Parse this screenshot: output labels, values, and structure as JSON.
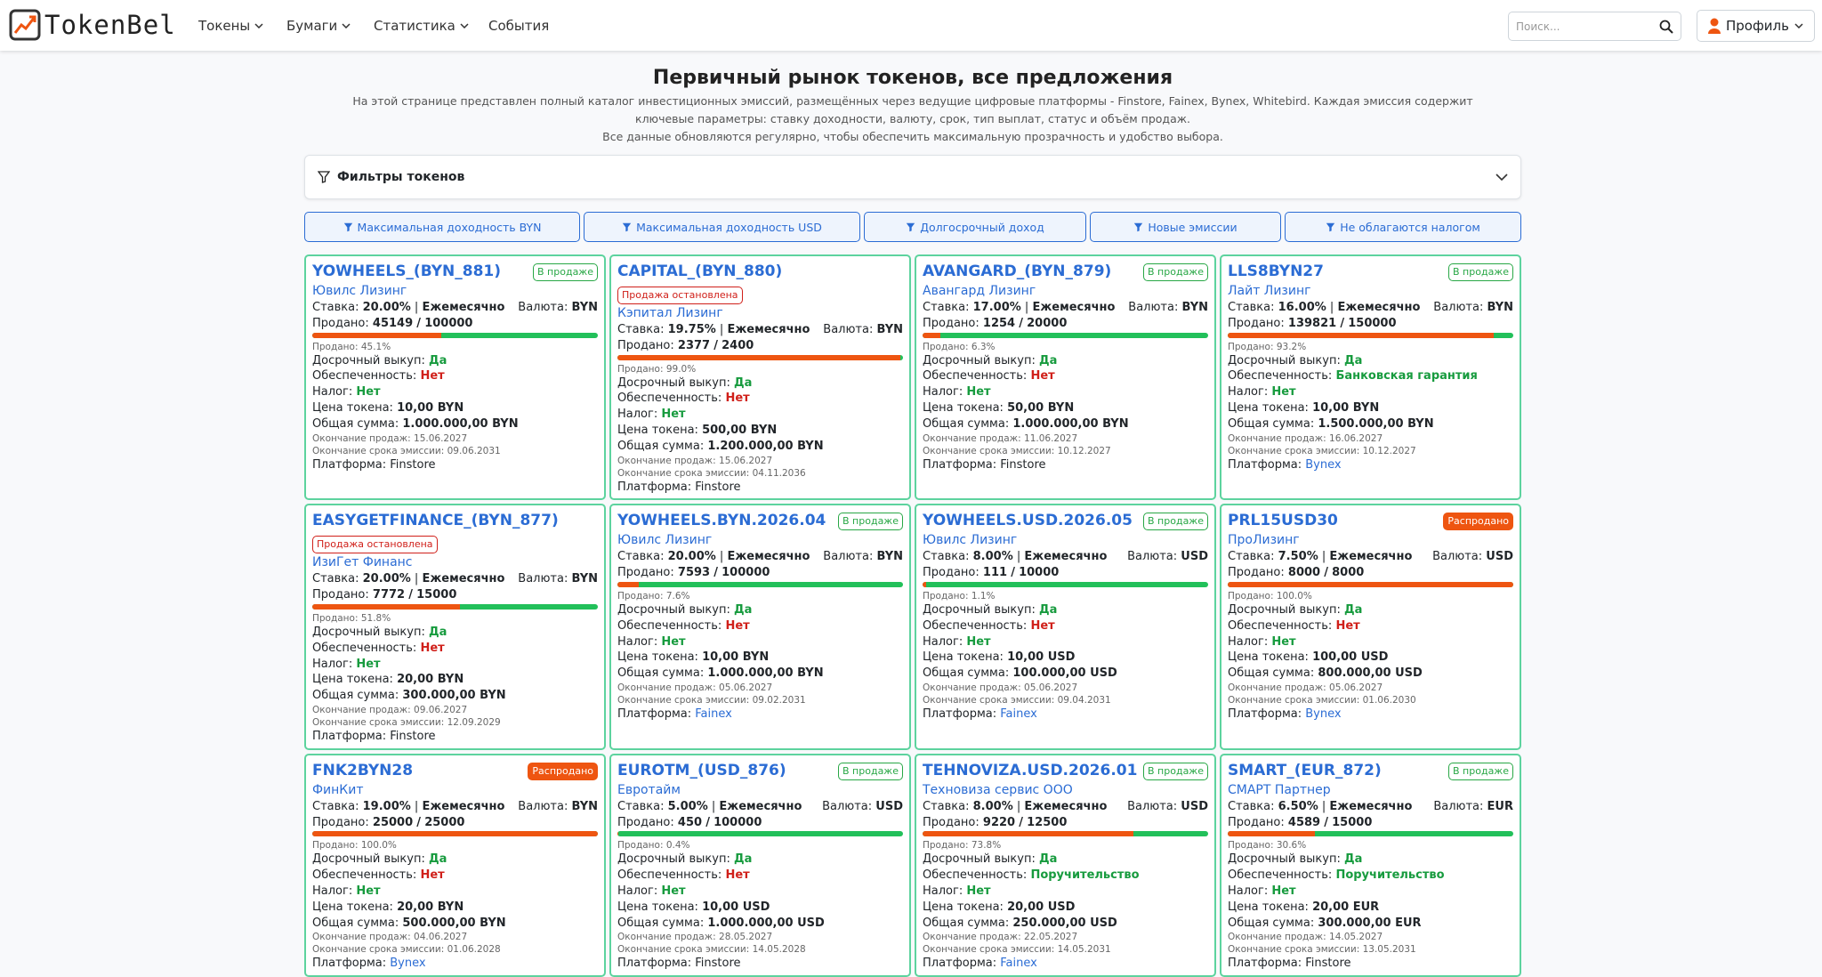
{
  "header": {
    "logo": "TokenBel",
    "nav": [
      "Токены",
      "Бумаги",
      "Статистика",
      "События"
    ],
    "search": "Поиск...",
    "profile": "Профиль"
  },
  "title": "Первичный рынок токенов, все предложения",
  "description": [
    "На этой странице представлен полный каталог инвестиционных эмиссий, размещённых через ведущие цифровые платформы - Finstore, Fainex, Bynex, Whitebird. Каждая эмиссия содержит ключевые параметры: ставку доходности, валюту, срок, тип выплат, статус и объём продаж.",
    "Все данные обновляются регулярно, чтобы обеспечить максимальную прозрачность и удобство выбора."
  ],
  "filters_title": "Фильтры токенов",
  "quick_filters": [
    "Максимальная доходность BYN",
    "Максимальная доходность USD",
    "Долгосрочный доход",
    "Новые эмиссии",
    "Не облагаются налогом"
  ],
  "labels": {
    "rate": "Ставка:",
    "sep": "|",
    "freq": "Ежемесячно",
    "currency": "Валюта:",
    "sold": "Продано:",
    "of": "/",
    "buyback": "Досрочный выкуп:",
    "security": "Обеспеченность:",
    "tax": "Налог:",
    "price": "Цена токена:",
    "total": "Общая сумма:",
    "sale_end": "Окончание продаж:",
    "emission_end": "Окончание срока эмиссии:",
    "platform": "Платформа:"
  },
  "cards": [
    {
      "name": "YOWHEELS_(BYN_881)",
      "status": "В продаже",
      "status_color": "#28a745",
      "company": "Ювилс Лизинг",
      "rate": "20.00%",
      "currency": "BYN",
      "sold": 45149,
      "total": 100000,
      "sold_pct": "45.1%",
      "buyback": "Да",
      "security": "Нет",
      "security_color": "#d0201a",
      "tax": "Нет",
      "price": "10,00 BYN",
      "sum": "1.000.000,00 BYN",
      "sale_end": "15.06.2027",
      "emission_end": "09.06.2031",
      "platform": "Finstore",
      "platform_color": "#212529"
    },
    {
      "name": "CAPITAL_(BYN_880)",
      "status": "Продажа остановлена",
      "status_color": "#d0201a",
      "company": "Кэпитал Лизинг",
      "rate": "19.75%",
      "currency": "BYN",
      "sold": 2377,
      "total": 2400,
      "sold_pct": "99.0%",
      "buyback": "Да",
      "security": "Нет",
      "security_color": "#d0201a",
      "tax": "Нет",
      "price": "500,00 BYN",
      "sum": "1.200.000,00 BYN",
      "sale_end": "15.06.2027",
      "emission_end": "04.11.2036",
      "platform": "Finstore",
      "platform_color": "#212529"
    },
    {
      "name": "AVANGARD_(BYN_879)",
      "status": "В продаже",
      "status_color": "#28a745",
      "company": "Авангард Лизинг",
      "rate": "17.00%",
      "currency": "BYN",
      "sold": 1254,
      "total": 20000,
      "sold_pct": "6.3%",
      "buyback": "Да",
      "security": "Нет",
      "security_color": "#d0201a",
      "tax": "Нет",
      "price": "50,00 BYN",
      "sum": "1.000.000,00 BYN",
      "sale_end": "11.06.2027",
      "emission_end": "10.12.2027",
      "platform": "Finstore",
      "platform_color": "#212529"
    },
    {
      "name": "LLS8BYN27",
      "status": "В продаже",
      "status_color": "#28a745",
      "company": "Лайт Лизинг",
      "rate": "16.00%",
      "currency": "BYN",
      "sold": 139821,
      "total": 150000,
      "sold_pct": "93.2%",
      "buyback": "Да",
      "security": "Банковская гарантия",
      "security_color": "#179b3e",
      "tax": "Нет",
      "price": "10,00 BYN",
      "sum": "1.500.000,00 BYN",
      "sale_end": "16.06.2027",
      "emission_end": "10.12.2027",
      "platform": "Bynex",
      "platform_color": "#2b6cd4"
    },
    {
      "name": "EASYGETFINANCE_(BYN_877)",
      "status": "Продажа остановлена",
      "status_color": "#d0201a",
      "company": "ИзиГет Финанс",
      "rate": "20.00%",
      "currency": "BYN",
      "sold": 7772,
      "total": 15000,
      "sold_pct": "51.8%",
      "buyback": "Да",
      "security": "Нет",
      "security_color": "#d0201a",
      "tax": "Нет",
      "price": "20,00 BYN",
      "sum": "300.000,00 BYN",
      "sale_end": "09.06.2027",
      "emission_end": "12.09.2029",
      "platform": "Finstore",
      "platform_color": "#212529"
    },
    {
      "name": "YOWHEELS.BYN.2026.04",
      "status": "В продаже",
      "status_color": "#28a745",
      "company": "Ювилс Лизинг",
      "rate": "20.00%",
      "currency": "BYN",
      "sold": 7593,
      "total": 100000,
      "sold_pct": "7.6%",
      "buyback": "Да",
      "security": "Нет",
      "security_color": "#d0201a",
      "tax": "Нет",
      "price": "10,00 BYN",
      "sum": "1.000.000,00 BYN",
      "sale_end": "05.06.2027",
      "emission_end": "09.02.2031",
      "platform": "Fainex",
      "platform_color": "#2b6cd4"
    },
    {
      "name": "YOWHEELS.USD.2026.05",
      "status": "В продаже",
      "status_color": "#28a745",
      "company": "Ювилс Лизинг",
      "rate": "8.00%",
      "currency": "USD",
      "sold": 111,
      "total": 10000,
      "sold_pct": "1.1%",
      "buyback": "Да",
      "security": "Нет",
      "security_color": "#d0201a",
      "tax": "Нет",
      "price": "10,00 USD",
      "sum": "100.000,00 USD",
      "sale_end": "05.06.2027",
      "emission_end": "09.04.2031",
      "platform": "Fainex",
      "platform_color": "#2b6cd4"
    },
    {
      "name": "PRL15USD30",
      "status": "Распродано",
      "status_color": "#ee5511",
      "company": "ПроЛизинг",
      "rate": "7.50%",
      "currency": "USD",
      "sold": 8000,
      "total": 8000,
      "sold_pct": "100.0%",
      "buyback": "Да",
      "security": "Нет",
      "security_color": "#d0201a",
      "tax": "Нет",
      "price": "100,00 USD",
      "sum": "800.000,00 USD",
      "sale_end": "05.06.2027",
      "emission_end": "01.06.2030",
      "platform": "Bynex",
      "platform_color": "#2b6cd4"
    },
    {
      "name": "FNK2BYN28",
      "status": "Распродано",
      "status_color": "#ee5511",
      "company": "ФинКит",
      "rate": "19.00%",
      "currency": "BYN",
      "sold": 25000,
      "total": 25000,
      "sold_pct": "100.0%",
      "buyback": "Да",
      "security": "Нет",
      "security_color": "#d0201a",
      "tax": "Нет",
      "price": "20,00 BYN",
      "sum": "500.000,00 BYN",
      "sale_end": "04.06.2027",
      "emission_end": "01.06.2028",
      "platform": "Bynex",
      "platform_color": "#2b6cd4"
    },
    {
      "name": "EUROTM_(USD_876)",
      "status": "В продаже",
      "status_color": "#28a745",
      "company": "Евротайм",
      "rate": "5.00%",
      "currency": "USD",
      "sold": 450,
      "total": 100000,
      "sold_pct": "0.4%",
      "buyback": "Да",
      "security": "Нет",
      "security_color": "#d0201a",
      "tax": "Нет",
      "price": "10,00 USD",
      "sum": "1.000.000,00 USD",
      "sale_end": "28.05.2027",
      "emission_end": "14.05.2028",
      "platform": "Finstore",
      "platform_color": "#212529"
    },
    {
      "name": "TEHNOVIZA.USD.2026.01",
      "status": "В продаже",
      "status_color": "#28a745",
      "company": "Техновиза сервис ООО",
      "rate": "8.00%",
      "currency": "USD",
      "sold": 9220,
      "total": 12500,
      "sold_pct": "73.8%",
      "buyback": "Да",
      "security": "Поручительство",
      "security_color": "#179b3e",
      "tax": "Нет",
      "price": "20,00 USD",
      "sum": "250.000,00 USD",
      "sale_end": "22.05.2027",
      "emission_end": "14.05.2031",
      "platform": "Fainex",
      "platform_color": "#2b6cd4"
    },
    {
      "name": "SMART_(EUR_872)",
      "status": "В продаже",
      "status_color": "#28a745",
      "company": "СМАРТ Партнер",
      "rate": "6.50%",
      "currency": "EUR",
      "sold": 4589,
      "total": 15000,
      "sold_pct": "30.6%",
      "buyback": "Да",
      "security": "Поручительство",
      "security_color": "#179b3e",
      "tax": "Нет",
      "price": "20,00 EUR",
      "sum": "300.000,00 EUR",
      "sale_end": "14.05.2027",
      "emission_end": "13.05.2031",
      "platform": "Finstore",
      "platform_color": "#212529"
    }
  ]
}
